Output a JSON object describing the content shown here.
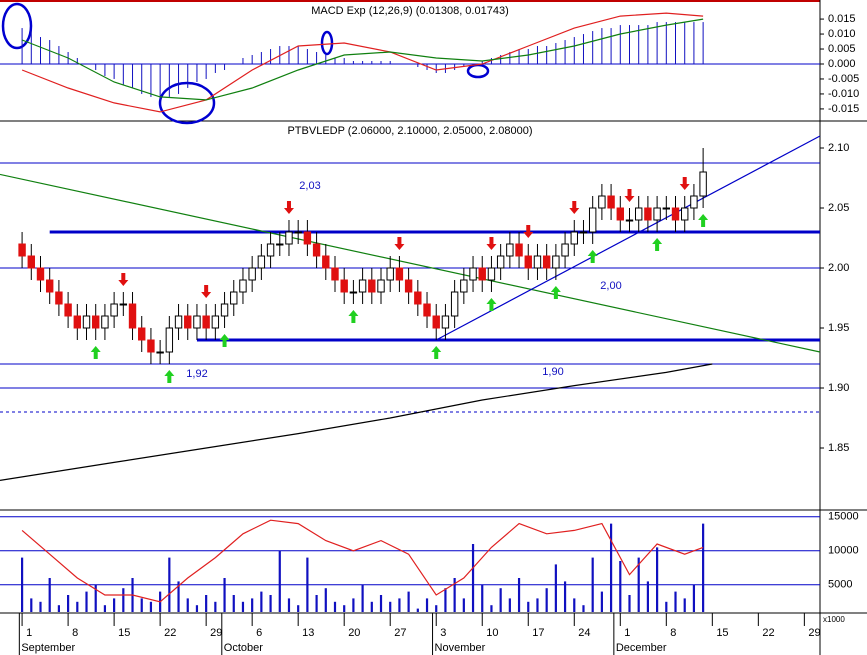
{
  "chart_data": [
    {
      "type": "macd",
      "title": "MACD Exp (12,26,9) (0.01308, 0.01743)",
      "xlim": [
        -2.4,
        86.7
      ],
      "ylim": [
        -0.0187,
        0.0207
      ],
      "yticks": [
        0.015,
        {
          "value": 0.01,
          "label": "0.010"
        },
        0.005,
        {
          "value": 0,
          "label": "0.000"
        },
        -0.005,
        {
          "value": -0.01,
          "label": "-0.010"
        },
        -0.015
      ],
      "histogram": [
        0.012,
        0.011,
        0.009,
        0.008,
        0.006,
        0.004,
        0.002,
        0.0,
        -0.002,
        -0.004,
        -0.005,
        -0.007,
        -0.008,
        -0.01,
        -0.011,
        -0.012,
        -0.011,
        -0.01,
        -0.008,
        -0.006,
        -0.005,
        -0.003,
        -0.002,
        0.0,
        0.002,
        0.003,
        0.004,
        0.005,
        0.006,
        0.006,
        0.006,
        0.005,
        0.004,
        0.003,
        0.002,
        0.002,
        0.001,
        0.001,
        0.001,
        0.001,
        0.001,
        0.0,
        0.0,
        -0.001,
        -0.002,
        -0.003,
        -0.003,
        -0.002,
        -0.001,
        0.0,
        0.001,
        0.002,
        0.003,
        0.004,
        0.005,
        0.005,
        0.006,
        0.006,
        0.007,
        0.008,
        0.009,
        0.01,
        0.011,
        0.012,
        0.012,
        0.013,
        0.013,
        0.013,
        0.013,
        0.014,
        0.014,
        0.014,
        0.014,
        0.014,
        0.014
      ],
      "histogram_color": "#1010c0",
      "series": [
        {
          "color": "#e02020",
          "x": [
            0,
            5,
            10,
            15,
            20,
            25,
            30,
            35,
            40,
            45,
            50,
            55,
            60,
            65,
            70,
            74
          ],
          "values": [
            -0.002,
            -0.008,
            -0.013,
            -0.016,
            -0.012,
            -0.002,
            0.006,
            0.007,
            0.004,
            -0.002,
            0.0,
            0.006,
            0.012,
            0.016,
            0.017,
            0.016
          ]
        },
        {
          "color": "#108010",
          "x": [
            0,
            5,
            10,
            15,
            20,
            25,
            30,
            35,
            40,
            45,
            50,
            55,
            60,
            65,
            70,
            74
          ],
          "values": [
            0.008,
            0.002,
            -0.006,
            -0.011,
            -0.012,
            -0.008,
            -0.002,
            0.003,
            0.004,
            0.002,
            0.001,
            0.003,
            0.006,
            0.01,
            0.013,
            0.015
          ]
        }
      ]
    },
    {
      "type": "candlestick",
      "title": "PTBVLEDP (2.06000, 2.10000, 2.05000, 2.08000)",
      "xlim": [
        -2.4,
        86.7
      ],
      "ylim": [
        1.8,
        2.12
      ],
      "yticks": [
        {
          "value": 2.1,
          "label": "2.10"
        },
        2.05,
        {
          "value": 2,
          "label": "2.00"
        },
        1.95,
        {
          "value": 1.9,
          "label": "1.90"
        },
        1.85
      ],
      "open": [
        2.02,
        2.01,
        2.0,
        1.99,
        1.98,
        1.97,
        1.96,
        1.95,
        1.96,
        1.95,
        1.96,
        1.97,
        1.97,
        1.95,
        1.94,
        1.93,
        1.93,
        1.95,
        1.96,
        1.95,
        1.96,
        1.95,
        1.96,
        1.97,
        1.98,
        1.99,
        2.0,
        2.01,
        2.02,
        2.02,
        2.03,
        2.03,
        2.02,
        2.01,
        2.0,
        1.99,
        1.98,
        1.98,
        1.99,
        1.98,
        1.99,
        2.0,
        1.99,
        1.98,
        1.97,
        1.96,
        1.95,
        1.96,
        1.98,
        1.99,
        2.0,
        1.99,
        2.0,
        2.01,
        2.02,
        2.01,
        2.0,
        2.01,
        2.0,
        2.01,
        2.02,
        2.03,
        2.03,
        2.05,
        2.06,
        2.05,
        2.04,
        2.04,
        2.05,
        2.04,
        2.05,
        2.05,
        2.04,
        2.05,
        2.06
      ],
      "high": [
        2.03,
        2.02,
        2.01,
        2.0,
        1.99,
        1.98,
        1.97,
        1.97,
        1.97,
        1.97,
        1.98,
        1.98,
        1.98,
        1.96,
        1.95,
        1.94,
        1.96,
        1.97,
        1.97,
        1.97,
        1.97,
        1.97,
        1.98,
        1.99,
        2.0,
        2.01,
        2.02,
        2.03,
        2.03,
        2.04,
        2.04,
        2.04,
        2.03,
        2.02,
        2.01,
        2.0,
        1.99,
        2.0,
        2.0,
        2.0,
        2.01,
        2.01,
        2.0,
        1.99,
        1.98,
        1.97,
        1.97,
        1.99,
        2.0,
        2.01,
        2.01,
        2.01,
        2.02,
        2.03,
        2.03,
        2.02,
        2.02,
        2.02,
        2.02,
        2.03,
        2.04,
        2.04,
        2.06,
        2.07,
        2.07,
        2.06,
        2.05,
        2.06,
        2.06,
        2.06,
        2.06,
        2.06,
        2.06,
        2.07,
        2.1
      ],
      "low": [
        2.0,
        1.99,
        1.98,
        1.97,
        1.96,
        1.95,
        1.94,
        1.94,
        1.94,
        1.94,
        1.95,
        1.96,
        1.94,
        1.93,
        1.92,
        1.92,
        1.92,
        1.94,
        1.94,
        1.94,
        1.94,
        1.94,
        1.95,
        1.96,
        1.97,
        1.98,
        1.99,
        2.0,
        2.01,
        2.01,
        2.02,
        2.01,
        2.0,
        1.99,
        1.98,
        1.97,
        1.97,
        1.97,
        1.97,
        1.97,
        1.98,
        1.98,
        1.97,
        1.96,
        1.95,
        1.94,
        1.94,
        1.95,
        1.97,
        1.98,
        1.98,
        1.98,
        1.99,
        2.0,
        2.0,
        1.99,
        1.99,
        1.99,
        1.99,
        2.0,
        2.01,
        2.02,
        2.02,
        2.04,
        2.04,
        2.03,
        2.03,
        2.03,
        2.03,
        2.03,
        2.04,
        2.03,
        2.03,
        2.04,
        2.05
      ],
      "close": [
        2.01,
        2.0,
        1.99,
        1.98,
        1.97,
        1.96,
        1.95,
        1.96,
        1.95,
        1.96,
        1.97,
        1.97,
        1.95,
        1.94,
        1.93,
        1.93,
        1.95,
        1.96,
        1.95,
        1.96,
        1.95,
        1.96,
        1.97,
        1.98,
        1.99,
        2.0,
        2.01,
        2.02,
        2.02,
        2.03,
        2.03,
        2.02,
        2.01,
        2.0,
        1.99,
        1.98,
        1.98,
        1.99,
        1.98,
        1.99,
        2.0,
        1.99,
        1.98,
        1.97,
        1.96,
        1.95,
        1.96,
        1.98,
        1.99,
        2.0,
        1.99,
        2.0,
        2.01,
        2.02,
        2.01,
        2.0,
        2.01,
        2.0,
        2.01,
        2.02,
        2.03,
        2.03,
        2.05,
        2.06,
        2.05,
        2.04,
        2.04,
        2.05,
        2.04,
        2.05,
        2.05,
        2.04,
        2.05,
        2.06,
        2.08
      ],
      "up_color": "#ffffff",
      "down_color": "#e01010",
      "levels": [
        {
          "value": 2.0875,
          "style": "thin"
        },
        {
          "value": 2.03,
          "style": "thick",
          "from": 3,
          "label": "2,03"
        },
        {
          "value": 2.0,
          "style": "thin",
          "label": "2,00"
        },
        {
          "value": 1.94,
          "style": "thick",
          "from": 19
        },
        {
          "value": 1.92,
          "style": "thin",
          "label": "1,92"
        },
        {
          "value": 1.9,
          "style": "thin",
          "label": "1,90"
        },
        {
          "value": 1.88,
          "style": "dashed"
        }
      ],
      "level_color": "#0000c8",
      "trendlines": [
        {
          "color": "#108010",
          "x": [
            -2.4,
            86.7
          ],
          "values": [
            2.078,
            1.93
          ]
        },
        {
          "color": "#0000c8",
          "x": [
            45,
            86.7
          ],
          "values": [
            1.94,
            2.11
          ]
        }
      ],
      "ma": {
        "color": "#000000",
        "x": [
          -2.4,
          10,
          20,
          30,
          40,
          50,
          60,
          70,
          75
        ],
        "values": [
          1.823,
          1.838,
          1.85,
          1.862,
          1.875,
          1.89,
          1.902,
          1.913,
          1.92
        ]
      },
      "sell_signals": {
        "color": "#e01010",
        "x": [
          11,
          20,
          29,
          41,
          51,
          55,
          60,
          66,
          72
        ]
      },
      "buy_signals": {
        "color": "#20d020",
        "x": [
          8,
          16,
          22,
          36,
          45,
          51,
          58,
          62,
          69,
          74
        ]
      }
    },
    {
      "type": "volume",
      "xlim": [
        -2.4,
        86.7
      ],
      "ylim": [
        1000,
        16000
      ],
      "yticks": [
        15000,
        10000,
        5000
      ],
      "unit_label": "x1000",
      "color": "#1010c0",
      "values": [
        9000,
        3000,
        2500,
        6000,
        2000,
        3500,
        2500,
        4000,
        5000,
        2000,
        3000,
        4500,
        6000,
        3000,
        2500,
        4000,
        9000,
        5500,
        3000,
        2000,
        3500,
        2500,
        6000,
        3500,
        2500,
        3000,
        4000,
        3500,
        10000,
        3000,
        2000,
        9000,
        3500,
        4500,
        2500,
        2000,
        3000,
        5000,
        2500,
        3500,
        2500,
        3000,
        4000,
        1500,
        3000,
        2000,
        4500,
        6000,
        3000,
        11000,
        5000,
        2000,
        4500,
        3000,
        6000,
        2500,
        3000,
        4500,
        8000,
        5500,
        3000,
        2000,
        9000,
        4000,
        14000,
        8500,
        3500,
        9000,
        5500,
        10500,
        2500,
        4000,
        3000,
        5000,
        14000
      ],
      "stochastic": {
        "color": "#e02020",
        "x": [
          0,
          3,
          6,
          9,
          12,
          15,
          18,
          21,
          24,
          27,
          30,
          33,
          36,
          39,
          42,
          45,
          48,
          51,
          54,
          57,
          60,
          63,
          66,
          69,
          72,
          74
        ],
        "values": [
          13000,
          9500,
          6000,
          3500,
          3500,
          2500,
          6000,
          9000,
          12500,
          14500,
          14000,
          11500,
          10000,
          11500,
          9500,
          3500,
          6000,
          10500,
          14000,
          12500,
          13000,
          14000,
          6500,
          11000,
          9500,
          10500
        ]
      },
      "xticks": [
        {
          "value": 0,
          "label": "1"
        },
        {
          "value": 5,
          "label": "8"
        },
        {
          "value": 10,
          "label": "15"
        },
        {
          "value": 15,
          "label": "22"
        },
        {
          "value": 20,
          "label": "29"
        },
        {
          "value": 25,
          "label": "6"
        },
        {
          "value": 30,
          "label": "13"
        },
        {
          "value": 35,
          "label": "20"
        },
        {
          "value": 40,
          "label": "27"
        },
        {
          "value": 45,
          "label": "3"
        },
        {
          "value": 50,
          "label": "10"
        },
        {
          "value": 55,
          "label": "17"
        },
        {
          "value": 60,
          "label": "24"
        },
        {
          "value": 65,
          "label": "1"
        },
        {
          "value": 70,
          "label": "8"
        },
        {
          "value": 75,
          "label": "15"
        },
        {
          "value": 80,
          "label": "22"
        },
        {
          "value": 85,
          "label": "29"
        }
      ],
      "months": [
        {
          "value": -0.3,
          "label": "September"
        },
        {
          "value": 21.7,
          "label": "October"
        },
        {
          "value": 44.6,
          "label": "November"
        },
        {
          "value": 64.3,
          "label": "December"
        }
      ]
    }
  ]
}
